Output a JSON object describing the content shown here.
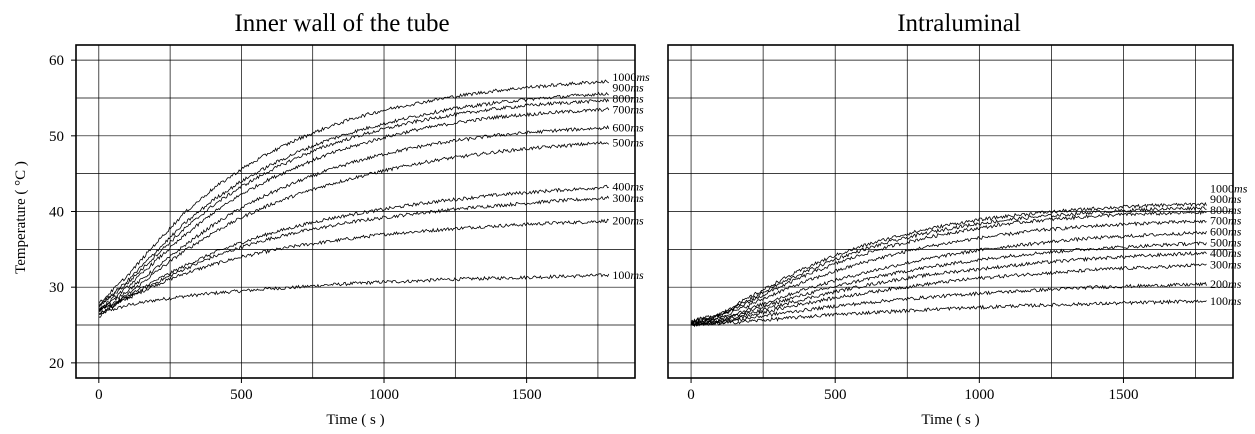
{
  "chart_data": [
    {
      "type": "line",
      "title": "Inner wall of the tube",
      "xlabel": "Time ( s )",
      "ylabel": "Temperature ( °C )",
      "xlim": [
        -80,
        1880
      ],
      "ylim": [
        18,
        62
      ],
      "xticks": [
        0,
        500,
        1000,
        1500
      ],
      "xtick_labels": [
        "0",
        "500",
        "1000",
        "1500"
      ],
      "yticks": [
        20,
        30,
        40,
        50,
        60
      ],
      "ytick_labels": [
        "20",
        "30",
        "40",
        "50",
        "60"
      ],
      "grid": true,
      "x_gridlines": [
        0,
        250,
        500,
        750,
        1000,
        1250,
        1500,
        1750
      ],
      "y_gridlines": [
        20,
        25,
        30,
        35,
        40,
        45,
        50,
        55,
        60
      ],
      "x": [
        0,
        100,
        200,
        300,
        400,
        500,
        600,
        700,
        800,
        900,
        1000,
        1100,
        1200,
        1300,
        1400,
        1500,
        1600,
        1700,
        1790
      ],
      "series": [
        {
          "label": "100",
          "unit": "ms",
          "values": [
            26.5,
            27.6,
            28.3,
            28.8,
            29.2,
            29.5,
            29.8,
            30.0,
            30.3,
            30.5,
            30.7,
            30.8,
            31.0,
            31.1,
            31.2,
            31.3,
            31.4,
            31.5,
            31.6
          ]
        },
        {
          "label": "200",
          "unit": "ms",
          "values": [
            26.5,
            28.5,
            30.3,
            31.8,
            33.0,
            34.0,
            34.8,
            35.5,
            36.0,
            36.5,
            37.0,
            37.3,
            37.6,
            37.9,
            38.1,
            38.3,
            38.5,
            38.6,
            38.8
          ]
        },
        {
          "label": "300",
          "unit": "ms",
          "values": [
            26.8,
            28.6,
            30.6,
            32.4,
            34.0,
            35.3,
            36.4,
            37.3,
            38.0,
            38.7,
            39.2,
            39.7,
            40.1,
            40.5,
            40.8,
            41.1,
            41.4,
            41.6,
            41.8
          ]
        },
        {
          "label": "400",
          "unit": "ms",
          "values": [
            27.0,
            28.8,
            30.9,
            32.8,
            34.5,
            35.9,
            37.1,
            38.1,
            39.0,
            39.7,
            40.3,
            40.9,
            41.4,
            41.8,
            42.2,
            42.5,
            42.8,
            43.0,
            43.3
          ]
        },
        {
          "label": "500",
          "unit": "ms",
          "values": [
            26.0,
            29.0,
            32.0,
            34.8,
            37.2,
            39.2,
            40.9,
            42.3,
            43.5,
            44.5,
            45.4,
            46.2,
            46.9,
            47.4,
            47.9,
            48.3,
            48.6,
            48.9,
            49.1
          ]
        },
        {
          "label": "600",
          "unit": "ms",
          "values": [
            27.0,
            29.5,
            32.5,
            35.5,
            38.2,
            40.5,
            42.4,
            44.0,
            45.4,
            46.6,
            47.6,
            48.4,
            49.1,
            49.6,
            50.1,
            50.4,
            50.7,
            50.9,
            51.1
          ]
        },
        {
          "label": "700",
          "unit": "ms",
          "values": [
            27.0,
            30.0,
            33.5,
            36.8,
            39.8,
            42.3,
            44.3,
            46.0,
            47.5,
            48.7,
            49.8,
            50.7,
            51.4,
            52.0,
            52.5,
            52.8,
            53.1,
            53.3,
            53.5
          ]
        },
        {
          "label": "800",
          "unit": "ms",
          "values": [
            27.5,
            30.5,
            34.2,
            37.7,
            40.8,
            43.3,
            45.4,
            47.2,
            48.7,
            49.9,
            50.9,
            51.8,
            52.5,
            53.1,
            53.6,
            54.0,
            54.3,
            54.5,
            54.7
          ]
        },
        {
          "label": "900",
          "unit": "ms",
          "values": [
            27.5,
            30.8,
            34.7,
            38.4,
            41.5,
            44.0,
            46.1,
            47.9,
            49.4,
            50.6,
            51.6,
            52.5,
            53.3,
            53.9,
            54.4,
            54.8,
            55.1,
            55.4,
            55.6
          ]
        },
        {
          "label": "1000",
          "unit": "ms",
          "values": [
            27.8,
            31.5,
            35.8,
            39.8,
            43.0,
            45.6,
            47.8,
            49.6,
            51.1,
            52.4,
            53.4,
            54.2,
            54.9,
            55.5,
            56.0,
            56.4,
            56.7,
            57.0,
            57.2
          ]
        }
      ]
    },
    {
      "type": "line",
      "title": "Intraluminal",
      "xlabel": "Time ( s )",
      "ylabel": "",
      "xlim": [
        -80,
        1880
      ],
      "ylim": [
        18,
        62
      ],
      "xticks": [
        0,
        500,
        1000,
        1500
      ],
      "xtick_labels": [
        "0",
        "500",
        "1000",
        "1500"
      ],
      "yticks": [],
      "ytick_labels": [],
      "grid": true,
      "x_gridlines": [
        0,
        250,
        500,
        750,
        1000,
        1250,
        1500,
        1750
      ],
      "y_gridlines": [
        20,
        25,
        30,
        35,
        40,
        45,
        50,
        55,
        60
      ],
      "x": [
        0,
        100,
        200,
        300,
        400,
        500,
        600,
        700,
        800,
        900,
        1000,
        1100,
        1200,
        1300,
        1400,
        1500,
        1600,
        1700,
        1790
      ],
      "series": [
        {
          "label": "100",
          "unit": "ms",
          "values": [
            25.0,
            25.2,
            25.5,
            25.8,
            26.1,
            26.4,
            26.6,
            26.8,
            27.0,
            27.2,
            27.3,
            27.5,
            27.6,
            27.7,
            27.8,
            27.9,
            28.0,
            28.1,
            28.2
          ]
        },
        {
          "label": "200",
          "unit": "ms",
          "values": [
            25.0,
            25.3,
            25.9,
            26.5,
            27.0,
            27.5,
            27.9,
            28.3,
            28.6,
            28.9,
            29.2,
            29.4,
            29.6,
            29.8,
            30.0,
            30.1,
            30.2,
            30.3,
            30.4
          ]
        },
        {
          "label": "300",
          "unit": "ms",
          "values": [
            25.0,
            25.4,
            26.2,
            27.1,
            27.9,
            28.6,
            29.2,
            29.8,
            30.3,
            30.8,
            31.2,
            31.5,
            31.8,
            32.0,
            32.3,
            32.5,
            32.6,
            32.8,
            33.0
          ]
        },
        {
          "label": "400",
          "unit": "ms",
          "values": [
            25.1,
            25.5,
            26.5,
            27.5,
            28.5,
            29.4,
            30.2,
            30.9,
            31.5,
            32.0,
            32.4,
            32.8,
            33.2,
            33.5,
            33.8,
            34.0,
            34.2,
            34.4,
            34.5
          ]
        },
        {
          "label": "500",
          "unit": "ms",
          "values": [
            25.1,
            25.6,
            26.8,
            28.0,
            29.1,
            30.1,
            31.0,
            31.8,
            32.5,
            33.1,
            33.6,
            34.1,
            34.5,
            34.8,
            35.1,
            35.3,
            35.5,
            35.7,
            35.8
          ]
        },
        {
          "label": "600",
          "unit": "ms",
          "values": [
            25.2,
            25.8,
            27.1,
            28.5,
            29.8,
            30.9,
            31.9,
            32.8,
            33.6,
            34.3,
            34.9,
            35.4,
            35.8,
            36.2,
            36.5,
            36.7,
            36.9,
            37.1,
            37.2
          ]
        },
        {
          "label": "700",
          "unit": "ms",
          "values": [
            25.2,
            26.0,
            27.6,
            29.3,
            30.8,
            32.1,
            33.3,
            34.3,
            35.2,
            35.9,
            36.5,
            37.0,
            37.5,
            37.8,
            38.1,
            38.3,
            38.5,
            38.6,
            38.7
          ]
        },
        {
          "label": "800",
          "unit": "ms",
          "values": [
            25.3,
            26.2,
            28.0,
            29.9,
            31.6,
            33.1,
            34.4,
            35.5,
            36.4,
            37.2,
            37.8,
            38.4,
            38.8,
            39.1,
            39.4,
            39.6,
            39.7,
            39.8,
            39.9
          ]
        },
        {
          "label": "900",
          "unit": "ms",
          "values": [
            25.3,
            26.3,
            28.3,
            30.3,
            32.1,
            33.7,
            35.0,
            36.1,
            37.0,
            37.8,
            38.4,
            38.9,
            39.3,
            39.6,
            39.9,
            40.1,
            40.3,
            40.4,
            40.5
          ]
        },
        {
          "label": "1000",
          "unit": "ms",
          "values": [
            25.5,
            26.5,
            28.6,
            30.7,
            32.6,
            34.2,
            35.5,
            36.6,
            37.5,
            38.3,
            38.9,
            39.4,
            39.8,
            40.1,
            40.4,
            40.6,
            40.8,
            40.9,
            41.0
          ]
        }
      ]
    }
  ]
}
